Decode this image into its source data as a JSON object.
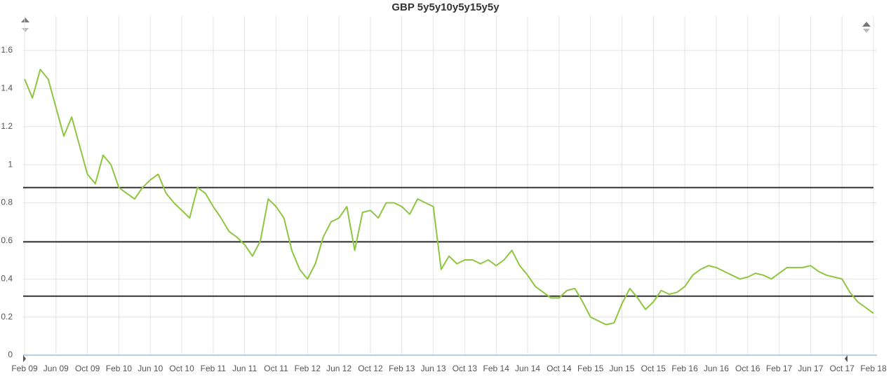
{
  "chart_data": {
    "type": "line",
    "title": "GBP 5y5y10y5y15y5y",
    "categories": [
      "Feb 09",
      null,
      null,
      null,
      "Jun 09",
      null,
      null,
      null,
      "Oct 09",
      null,
      null,
      null,
      "Feb 10",
      null,
      null,
      null,
      "Jun 10",
      null,
      null,
      null,
      "Oct 10",
      null,
      null,
      null,
      "Feb 11",
      null,
      null,
      null,
      "Jun 11",
      null,
      null,
      null,
      "Oct 11",
      null,
      null,
      null,
      "Feb 12",
      null,
      null,
      null,
      "Jun 12",
      null,
      null,
      null,
      "Oct 12",
      null,
      null,
      null,
      "Feb 13",
      null,
      null,
      null,
      "Jun 13",
      null,
      null,
      null,
      "Oct 13",
      null,
      null,
      null,
      "Feb 14",
      null,
      null,
      null,
      "Jun 14",
      null,
      null,
      null,
      "Oct 14",
      null,
      null,
      null,
      "Feb 15",
      null,
      null,
      null,
      "Jun 15",
      null,
      null,
      null,
      "Oct 15",
      null,
      null,
      null,
      "Feb 16",
      null,
      null,
      null,
      "Jun 16",
      null,
      null,
      null,
      "Oct 16",
      null,
      null,
      null,
      "Feb 17",
      null,
      null,
      null,
      "Jun 17",
      null,
      null,
      null,
      "Oct 17",
      null,
      null,
      null,
      "Feb 18"
    ],
    "series": [
      {
        "color": "#8dc63f",
        "values": [
          1.45,
          1.35,
          1.5,
          1.45,
          1.3,
          1.15,
          1.25,
          1.1,
          0.95,
          0.9,
          1.05,
          1.0,
          0.88,
          0.85,
          0.82,
          0.88,
          0.92,
          0.95,
          0.85,
          0.8,
          0.76,
          0.72,
          0.88,
          0.85,
          0.78,
          0.72,
          0.65,
          0.62,
          0.58,
          0.52,
          0.6,
          0.82,
          0.78,
          0.72,
          0.55,
          0.45,
          0.4,
          0.48,
          0.62,
          0.7,
          0.72,
          0.78,
          0.55,
          0.75,
          0.76,
          0.72,
          0.8,
          0.8,
          0.78,
          0.74,
          0.82,
          0.8,
          0.78,
          0.45,
          0.52,
          0.48,
          0.5,
          0.5,
          0.48,
          0.5,
          0.47,
          0.5,
          0.55,
          0.47,
          0.42,
          0.36,
          0.33,
          0.3,
          0.3,
          0.34,
          0.35,
          0.28,
          0.2,
          0.18,
          0.16,
          0.17,
          0.27,
          0.35,
          0.3,
          0.24,
          0.28,
          0.34,
          0.32,
          0.33,
          0.36,
          0.42,
          0.45,
          0.47,
          0.46,
          0.44,
          0.42,
          0.4,
          0.41,
          0.43,
          0.42,
          0.4,
          0.43,
          0.46,
          0.46,
          0.46,
          0.47,
          0.44,
          0.42,
          0.41,
          0.4,
          0.33,
          0.28,
          0.25,
          0.22
        ]
      }
    ],
    "reference_lines": [
      0.88,
      0.595,
      0.31
    ],
    "reference_color": "#333333",
    "ylim": [
      0,
      1.78
    ],
    "yticks": [
      0,
      0.2,
      0.4,
      0.6,
      0.8,
      1,
      1.2,
      1.4,
      1.6
    ],
    "grid": true
  }
}
